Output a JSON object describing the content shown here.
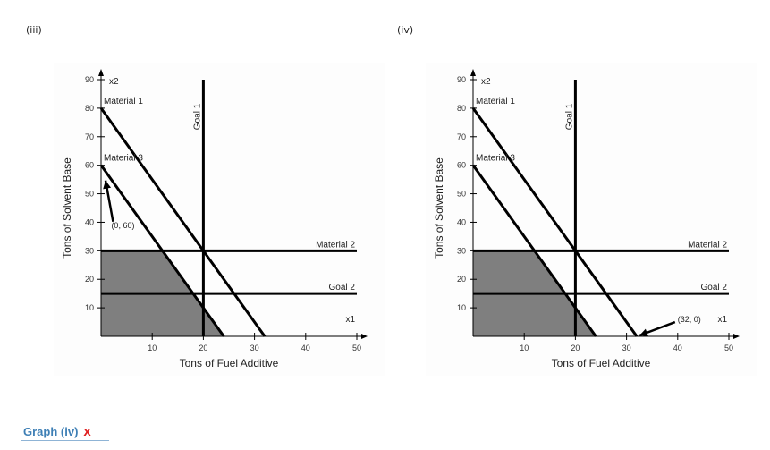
{
  "panels": {
    "left_label": "(iii)",
    "right_label": "(iv)"
  },
  "answer": {
    "text": "Graph (iv)",
    "mark": "x",
    "mark_color": "#e02020",
    "link_color": "#3e7fb5"
  },
  "colors": {
    "feasible_region": "#7f7f7f",
    "lines": "#000000"
  },
  "chart_data": [
    {
      "id": "iii",
      "type": "line",
      "title": "(iii)",
      "xlabel": "Tons of Fuel Additive",
      "ylabel": "Tons of Solvent Base",
      "x_axis_name": "x1",
      "y_axis_name": "x2",
      "xlim": [
        0,
        50
      ],
      "ylim": [
        0,
        90
      ],
      "xticks": [
        10,
        20,
        30,
        40,
        50
      ],
      "yticks": [
        10,
        20,
        30,
        40,
        50,
        60,
        70,
        80,
        90
      ],
      "lines": [
        {
          "name": "Material 1",
          "points": [
            [
              0,
              80
            ],
            [
              32,
              0
            ]
          ]
        },
        {
          "name": "Material 3",
          "points": [
            [
              0,
              60
            ],
            [
              24,
              0
            ]
          ]
        },
        {
          "name": "Material 2",
          "points": [
            [
              0,
              30
            ],
            [
              50,
              30
            ]
          ]
        },
        {
          "name": "Goal 2",
          "points": [
            [
              0,
              15
            ],
            [
              50,
              15
            ]
          ]
        },
        {
          "name": "Goal 1",
          "points": [
            [
              20,
              0
            ],
            [
              20,
              90
            ]
          ]
        }
      ],
      "shaded_region": [
        [
          0,
          0
        ],
        [
          0,
          30
        ],
        [
          12,
          30
        ],
        [
          24,
          0
        ]
      ],
      "annotation": {
        "text": "(0, 60)",
        "point": [
          0,
          60
        ],
        "label_at": [
          2,
          38
        ]
      }
    },
    {
      "id": "iv",
      "type": "line",
      "title": "(iv)",
      "xlabel": "Tons of Fuel Additive",
      "ylabel": "Tons of Solvent Base",
      "x_axis_name": "x1",
      "y_axis_name": "x2",
      "xlim": [
        0,
        50
      ],
      "ylim": [
        0,
        90
      ],
      "xticks": [
        10,
        20,
        30,
        40,
        50
      ],
      "yticks": [
        10,
        20,
        30,
        40,
        50,
        60,
        70,
        80,
        90
      ],
      "lines": [
        {
          "name": "Material 1",
          "points": [
            [
              0,
              80
            ],
            [
              32,
              0
            ]
          ]
        },
        {
          "name": "Material 3",
          "points": [
            [
              0,
              60
            ],
            [
              24,
              0
            ]
          ]
        },
        {
          "name": "Material 2",
          "points": [
            [
              0,
              30
            ],
            [
              50,
              30
            ]
          ]
        },
        {
          "name": "Goal 2",
          "points": [
            [
              0,
              15
            ],
            [
              50,
              15
            ]
          ]
        },
        {
          "name": "Goal 1",
          "points": [
            [
              20,
              0
            ],
            [
              20,
              90
            ]
          ]
        }
      ],
      "shaded_region": [
        [
          0,
          0
        ],
        [
          0,
          30
        ],
        [
          12,
          30
        ],
        [
          24,
          0
        ]
      ],
      "annotation": {
        "text": "(32, 0)",
        "point": [
          32,
          0
        ],
        "label_at": [
          40,
          5
        ]
      }
    }
  ]
}
